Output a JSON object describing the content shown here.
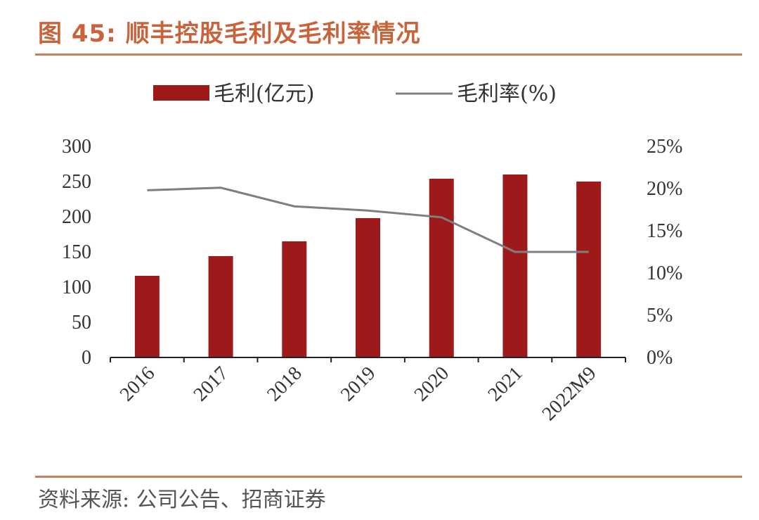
{
  "header": {
    "title": "图 45:  顺丰控股毛利及毛利率情况"
  },
  "footer": {
    "source": "资料来源:  公司公告、招商证券"
  },
  "colors": {
    "bar": "#9e1a1a",
    "line": "#7f7f7f",
    "accent": "#c8643b"
  },
  "chart_data": {
    "type": "bar",
    "categories": [
      "2016",
      "2017",
      "2018",
      "2019",
      "2020",
      "2021",
      "2022M9"
    ],
    "series": [
      {
        "name": "毛利(亿元)",
        "type": "bar",
        "axis": "left",
        "values": [
          116,
          144,
          165,
          198,
          254,
          260,
          250
        ]
      },
      {
        "name": "毛利率(%)",
        "type": "line",
        "axis": "right",
        "values": [
          19.8,
          20.1,
          17.9,
          17.4,
          16.6,
          12.5,
          12.5
        ]
      }
    ],
    "y_left": {
      "range": [
        0,
        300
      ],
      "ticks": [
        "0",
        "50",
        "100",
        "150",
        "200",
        "250",
        "300"
      ]
    },
    "y_right": {
      "range": [
        0,
        25
      ],
      "ticks": [
        "0%",
        "5%",
        "10%",
        "15%",
        "20%",
        "25%"
      ]
    },
    "legend": {
      "position": "top",
      "items": [
        "毛利(亿元)",
        "毛利率(%)"
      ]
    },
    "grid": false
  }
}
